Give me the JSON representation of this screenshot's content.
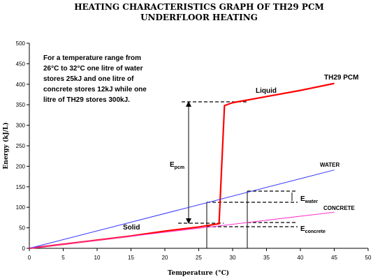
{
  "chart_data": {
    "type": "line",
    "title": "HEATING CHARACTERISTICS GRAPH OF TH29 PCM",
    "subtitle": "UNDERFLOOR HEATING",
    "xlabel": "Temperature (°C)",
    "ylabel": "Energy (kJ/L)",
    "xlim": [
      0,
      50
    ],
    "ylim": [
      0,
      500
    ],
    "x_ticks": [
      0,
      5,
      10,
      15,
      20,
      25,
      30,
      35,
      40,
      45,
      50
    ],
    "y_ticks": [
      0,
      50,
      100,
      150,
      200,
      250,
      300,
      350,
      400,
      450,
      500
    ],
    "grid": false,
    "legend": "none",
    "note": [
      "For a temperature range from",
      "26°C to 32°C one litre of water",
      "stores 25kJ and one litre of",
      "concrete stores 12kJ while one",
      "litre of TH29 stores 300kJ."
    ],
    "series": [
      {
        "name": "TH29 PCM",
        "color": "#ff0000",
        "x": [
          0,
          5,
          10,
          15,
          20,
          25,
          28,
          28.8,
          30,
          35,
          40,
          45
        ],
        "y": [
          0,
          10,
          20,
          30,
          42,
          52,
          60,
          348,
          355,
          370,
          385,
          402
        ]
      },
      {
        "name": "WATER",
        "color": "#3333ff",
        "x": [
          0,
          45
        ],
        "y": [
          0,
          191
        ]
      },
      {
        "name": "CONCRETE",
        "color": "#ff33cc",
        "x": [
          0,
          45
        ],
        "y": [
          0,
          88
        ]
      }
    ],
    "annotations": {
      "liquid": "Liquid",
      "solid": "Solid",
      "e_pcm_main": "E",
      "e_pcm_sub": "pcm",
      "e_water_main": "E",
      "e_water_sub": "water",
      "e_concrete_main": "E",
      "e_concrete_sub": "concrete"
    }
  }
}
